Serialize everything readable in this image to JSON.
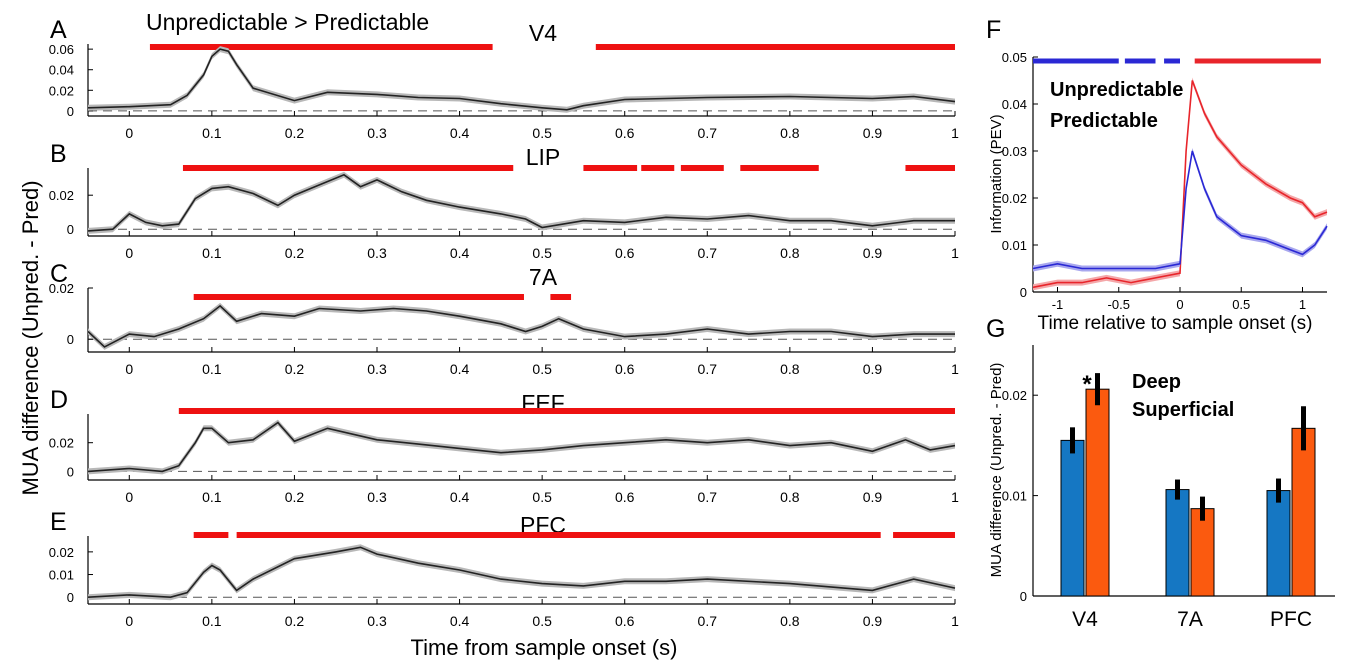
{
  "figure": {
    "shared_ylabel": "MUA difference (Unpred. - Pred)",
    "shared_xlabel": "Time from sample onset (s)",
    "header_label": "Unpredictable  > Predictable"
  },
  "colors": {
    "sig_red": "#ee1111",
    "line_black": "#222222",
    "band_gray": "#b8b8b8",
    "unpredictable": "#e8252b",
    "predictable": "#2a28d4",
    "deep": "#1577c3",
    "superficial": "#fb5a0f"
  },
  "chart_data": [
    {
      "panel": "A",
      "title": "V4",
      "type": "line",
      "x_ticks": [
        0,
        0.1,
        0.2,
        0.3,
        0.4,
        0.5,
        0.6,
        0.7,
        0.8,
        0.9,
        1
      ],
      "x_tick_labels": [
        "0",
        "0.1",
        "0.2",
        "0.3",
        "0.4",
        "0.5",
        "0.6",
        "0.7",
        "0.8",
        "0.9",
        "1"
      ],
      "xlim": [
        -0.05,
        1.0
      ],
      "ylim": [
        -0.005,
        0.065
      ],
      "y_ticks": [
        0,
        0.02,
        0.04,
        0.06
      ],
      "y_tick_labels": [
        "0",
        "0.02",
        "0.04",
        "0.06"
      ],
      "x": [
        -0.05,
        0.0,
        0.05,
        0.07,
        0.09,
        0.1,
        0.11,
        0.12,
        0.13,
        0.15,
        0.2,
        0.24,
        0.3,
        0.35,
        0.4,
        0.45,
        0.5,
        0.53,
        0.55,
        0.6,
        0.7,
        0.8,
        0.9,
        0.95,
        1.0
      ],
      "y": [
        0.003,
        0.004,
        0.006,
        0.015,
        0.035,
        0.053,
        0.06,
        0.058,
        0.045,
        0.022,
        0.01,
        0.018,
        0.016,
        0.013,
        0.012,
        0.007,
        0.003,
        0.001,
        0.005,
        0.011,
        0.013,
        0.014,
        0.012,
        0.014,
        0.009
      ],
      "sig_bars": [
        [
          0.025,
          0.44
        ],
        [
          0.565,
          1.0
        ]
      ]
    },
    {
      "panel": "B",
      "title": "LIP",
      "type": "line",
      "x_ticks": [
        0,
        0.1,
        0.2,
        0.3,
        0.4,
        0.5,
        0.6,
        0.7,
        0.8,
        0.9,
        1
      ],
      "x_tick_labels": [
        "0",
        "0.1",
        "0.2",
        "0.3",
        "0.4",
        "0.5",
        "0.6",
        "0.7",
        "0.8",
        "0.9",
        "1"
      ],
      "xlim": [
        -0.05,
        1.0
      ],
      "ylim": [
        -0.004,
        0.036
      ],
      "y_ticks": [
        0,
        0.02
      ],
      "y_tick_labels": [
        "0",
        "0.02"
      ],
      "x": [
        -0.05,
        -0.02,
        0.0,
        0.02,
        0.04,
        0.06,
        0.08,
        0.1,
        0.12,
        0.15,
        0.18,
        0.2,
        0.22,
        0.26,
        0.28,
        0.3,
        0.33,
        0.36,
        0.4,
        0.45,
        0.48,
        0.5,
        0.55,
        0.6,
        0.65,
        0.7,
        0.75,
        0.8,
        0.85,
        0.9,
        0.95,
        1.0
      ],
      "y": [
        -0.001,
        0.0,
        0.009,
        0.004,
        0.002,
        0.003,
        0.018,
        0.024,
        0.025,
        0.021,
        0.014,
        0.02,
        0.024,
        0.032,
        0.025,
        0.029,
        0.022,
        0.017,
        0.013,
        0.009,
        0.006,
        0.001,
        0.005,
        0.004,
        0.007,
        0.006,
        0.008,
        0.005,
        0.005,
        0.002,
        0.005,
        0.005
      ],
      "sig_bars": [
        [
          0.065,
          0.465
        ],
        [
          0.55,
          0.615
        ],
        [
          0.62,
          0.66
        ],
        [
          0.668,
          0.72
        ],
        [
          0.74,
          0.835
        ],
        [
          0.94,
          1.0
        ]
      ]
    },
    {
      "panel": "C",
      "title": "7A",
      "type": "line",
      "x_ticks": [
        0,
        0.1,
        0.2,
        0.3,
        0.4,
        0.5,
        0.6,
        0.7,
        0.8,
        0.9,
        1
      ],
      "x_tick_labels": [
        "0",
        "0.1",
        "0.2",
        "0.3",
        "0.4",
        "0.5",
        "0.6",
        "0.7",
        "0.8",
        "0.9",
        "1"
      ],
      "xlim": [
        -0.05,
        1.0
      ],
      "ylim": [
        -0.005,
        0.02
      ],
      "y_ticks": [
        0,
        0.02
      ],
      "y_tick_labels": [
        "0",
        "0.02"
      ],
      "x": [
        -0.05,
        -0.03,
        0.0,
        0.03,
        0.06,
        0.09,
        0.11,
        0.13,
        0.16,
        0.2,
        0.23,
        0.28,
        0.32,
        0.36,
        0.4,
        0.45,
        0.48,
        0.5,
        0.52,
        0.55,
        0.6,
        0.65,
        0.7,
        0.75,
        0.8,
        0.85,
        0.9,
        0.95,
        1.0
      ],
      "y": [
        0.003,
        -0.003,
        0.002,
        0.001,
        0.004,
        0.008,
        0.013,
        0.007,
        0.01,
        0.009,
        0.012,
        0.011,
        0.012,
        0.011,
        0.009,
        0.006,
        0.003,
        0.005,
        0.008,
        0.004,
        0.001,
        0.002,
        0.004,
        0.002,
        0.003,
        0.003,
        0.001,
        0.002,
        0.002
      ],
      "sig_bars": [
        [
          0.078,
          0.478
        ],
        [
          0.51,
          0.535
        ]
      ]
    },
    {
      "panel": "D",
      "title": "FEF",
      "type": "line",
      "x_ticks": [
        0,
        0.1,
        0.2,
        0.3,
        0.4,
        0.5,
        0.6,
        0.7,
        0.8,
        0.9,
        1
      ],
      "x_tick_labels": [
        "0",
        "0.1",
        "0.2",
        "0.3",
        "0.4",
        "0.5",
        "0.6",
        "0.7",
        "0.8",
        "0.9",
        "1"
      ],
      "xlim": [
        -0.05,
        1.0
      ],
      "ylim": [
        -0.006,
        0.04
      ],
      "y_ticks": [
        0,
        0.02
      ],
      "y_tick_labels": [
        "0",
        "0.02"
      ],
      "x": [
        -0.05,
        0.0,
        0.04,
        0.06,
        0.08,
        0.09,
        0.1,
        0.12,
        0.15,
        0.18,
        0.2,
        0.24,
        0.3,
        0.35,
        0.4,
        0.45,
        0.5,
        0.55,
        0.6,
        0.65,
        0.7,
        0.75,
        0.8,
        0.85,
        0.9,
        0.94,
        0.97,
        1.0
      ],
      "y": [
        0.0,
        0.002,
        0.0,
        0.004,
        0.02,
        0.03,
        0.03,
        0.02,
        0.022,
        0.034,
        0.021,
        0.03,
        0.022,
        0.019,
        0.016,
        0.013,
        0.015,
        0.018,
        0.02,
        0.022,
        0.02,
        0.022,
        0.018,
        0.02,
        0.014,
        0.022,
        0.015,
        0.018
      ],
      "sig_bars": [
        [
          0.06,
          1.0
        ]
      ]
    },
    {
      "panel": "E",
      "title": "PFC",
      "type": "line",
      "x_ticks": [
        0,
        0.1,
        0.2,
        0.3,
        0.4,
        0.5,
        0.6,
        0.7,
        0.8,
        0.9,
        1
      ],
      "x_tick_labels": [
        "0",
        "0.1",
        "0.2",
        "0.3",
        "0.4",
        "0.5",
        "0.6",
        "0.7",
        "0.8",
        "0.9",
        "1"
      ],
      "xlim": [
        -0.05,
        1.0
      ],
      "ylim": [
        -0.003,
        0.027
      ],
      "y_ticks": [
        0,
        0.01,
        0.02
      ],
      "y_tick_labels": [
        "0",
        "0.01",
        "0.02"
      ],
      "x": [
        -0.05,
        0.0,
        0.05,
        0.07,
        0.09,
        0.1,
        0.11,
        0.13,
        0.15,
        0.2,
        0.25,
        0.28,
        0.3,
        0.35,
        0.4,
        0.45,
        0.5,
        0.55,
        0.6,
        0.65,
        0.7,
        0.8,
        0.9,
        0.93,
        0.95,
        1.0
      ],
      "y": [
        0.0,
        0.001,
        0.0,
        0.002,
        0.011,
        0.014,
        0.012,
        0.003,
        0.008,
        0.017,
        0.02,
        0.022,
        0.019,
        0.015,
        0.012,
        0.008,
        0.006,
        0.005,
        0.007,
        0.007,
        0.008,
        0.006,
        0.003,
        0.006,
        0.008,
        0.004
      ],
      "sig_bars": [
        [
          0.078,
          0.12
        ],
        [
          0.13,
          0.91
        ],
        [
          0.925,
          1.0
        ]
      ]
    },
    {
      "panel": "F",
      "type": "line",
      "xlabel": "Time relative to sample onset (s)",
      "ylabel": "Information (PEV)",
      "xlim": [
        -1.2,
        1.2
      ],
      "ylim": [
        0,
        0.05
      ],
      "x_ticks": [
        -1,
        -0.5,
        0,
        0.5,
        1
      ],
      "x_tick_labels": [
        "-1",
        "-0.5",
        "0",
        "0.5",
        "1"
      ],
      "y_ticks": [
        0,
        0.01,
        0.02,
        0.03,
        0.04,
        0.05
      ],
      "y_tick_labels": [
        "0",
        "0.01",
        "0.02",
        "0.03",
        "0.04",
        "0.05"
      ],
      "series": [
        {
          "name": "Unpredictable",
          "x": [
            -1.2,
            -1.0,
            -0.8,
            -0.6,
            -0.4,
            -0.2,
            0.0,
            0.05,
            0.1,
            0.2,
            0.3,
            0.5,
            0.7,
            0.9,
            1.0,
            1.1,
            1.2
          ],
          "y": [
            0.001,
            0.002,
            0.002,
            0.003,
            0.002,
            0.003,
            0.004,
            0.03,
            0.045,
            0.038,
            0.033,
            0.027,
            0.023,
            0.02,
            0.019,
            0.016,
            0.017
          ]
        },
        {
          "name": "Predictable",
          "x": [
            -1.2,
            -1.0,
            -0.8,
            -0.6,
            -0.4,
            -0.2,
            0.0,
            0.05,
            0.1,
            0.2,
            0.3,
            0.5,
            0.7,
            0.9,
            1.0,
            1.1,
            1.2
          ],
          "y": [
            0.005,
            0.006,
            0.005,
            0.005,
            0.005,
            0.005,
            0.006,
            0.022,
            0.03,
            0.022,
            0.016,
            0.012,
            0.011,
            0.009,
            0.008,
            0.01,
            0.014
          ]
        }
      ],
      "sig_bars_predictable": [
        [
          -1.2,
          -0.5
        ],
        [
          -0.45,
          -0.2
        ],
        [
          -0.13,
          0.0
        ]
      ],
      "sig_bars_unpredictable": [
        [
          0.12,
          1.15
        ]
      ]
    },
    {
      "panel": "G",
      "type": "bar",
      "ylabel": "MUA difference (Unpred. - Pred)",
      "categories": [
        "V4",
        "7A",
        "PFC"
      ],
      "ylim": [
        0,
        0.025
      ],
      "y_ticks": [
        0,
        0.01,
        0.02
      ],
      "y_tick_labels": [
        "0",
        "0.01",
        "0.02"
      ],
      "series": [
        {
          "name": "Deep",
          "values": [
            0.0155,
            0.0106,
            0.0105
          ],
          "errors": [
            0.0013,
            0.001,
            0.0012
          ]
        },
        {
          "name": "Superficial",
          "values": [
            0.0206,
            0.0087,
            0.0167
          ],
          "errors": [
            0.0016,
            0.0012,
            0.0022
          ]
        }
      ],
      "annotations": [
        {
          "category": "V4",
          "text": "*"
        }
      ]
    }
  ]
}
